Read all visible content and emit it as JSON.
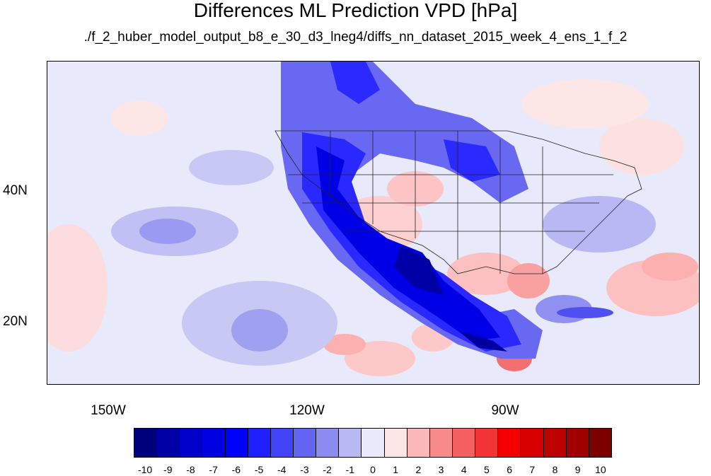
{
  "title": "Differences ML Prediction VPD [hPa]",
  "subtitle": "./f_2_huber_model_output_b8_e_30_d3_lneg4/diffs_nn_dataset_2015_week_4_ens_1_f_2",
  "lat_labels": [
    "40N",
    "20N"
  ],
  "lon_labels": [
    "150W",
    "120W",
    "90W"
  ],
  "colorbar": {
    "labels": [
      "-10",
      "-9",
      "-8",
      "-7",
      "-6",
      "-5",
      "-4",
      "-3",
      "-2",
      "-1",
      "0",
      "1",
      "2",
      "3",
      "4",
      "5",
      "6",
      "7",
      "8",
      "9",
      "10"
    ],
    "colors": [
      "#00007d",
      "#0000a6",
      "#0000c8",
      "#0000e0",
      "#0000ff",
      "#1f1fff",
      "#4343f7",
      "#6464f2",
      "#8c8cf2",
      "#b8b8f5",
      "#e8e9fa",
      "#fde6e6",
      "#fcb8b8",
      "#f98a8a",
      "#f76060",
      "#f33434",
      "#f50000",
      "#d80000",
      "#bd0000",
      "#a00000",
      "#7d0000"
    ]
  }
}
